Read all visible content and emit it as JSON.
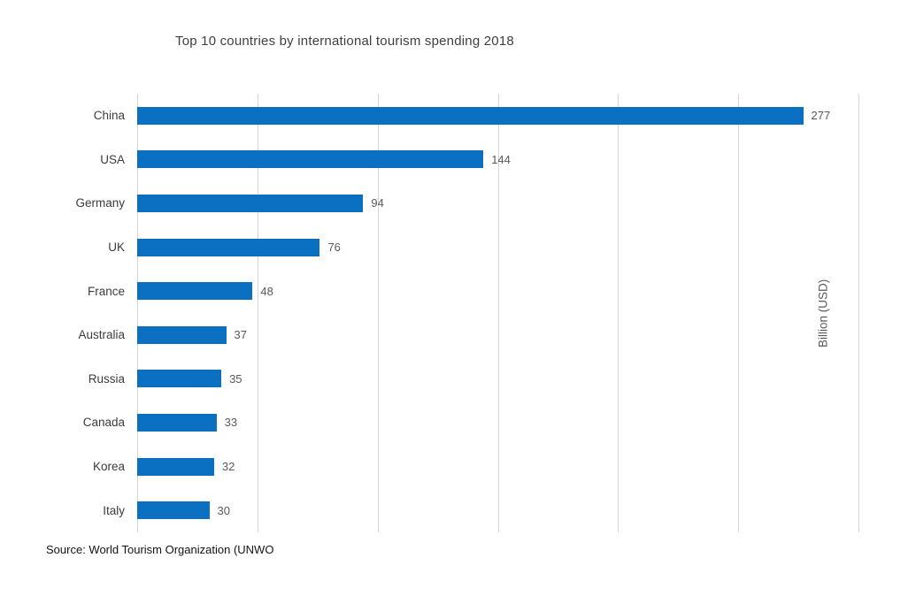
{
  "title": "Top 10 countries by international tourism spending 2018",
  "right_axis_label": "Billion (USD)",
  "source": "Source: World Tourism Organization (UNWO",
  "colors": {
    "bar": "#0b70c1",
    "gridline": "#d6d6d6",
    "title_text": "#3f3f3f",
    "category_label": "#3c3c3c",
    "value_label": "#595959"
  },
  "chart_data": {
    "type": "bar",
    "orientation": "horizontal",
    "title": "Top 10 countries by international tourism spending 2018",
    "categories": [
      "China",
      "USA",
      "Germany",
      "UK",
      "France",
      "Australia",
      "Russia",
      "Canada",
      "Korea",
      "Italy"
    ],
    "values": [
      277,
      144,
      94,
      76,
      48,
      37,
      35,
      33,
      32,
      30
    ],
    "value_labels": [
      "277",
      "144",
      "94",
      "76",
      "48",
      "37",
      "35",
      "33",
      "32",
      "30"
    ],
    "xlabel": "",
    "ylabel": "Billion (USD)",
    "xlim": [
      0,
      300
    ],
    "gridline_step": 50,
    "grid": true,
    "legend": false,
    "data_labels_shown": true,
    "x_tick_labels_shown": false
  }
}
